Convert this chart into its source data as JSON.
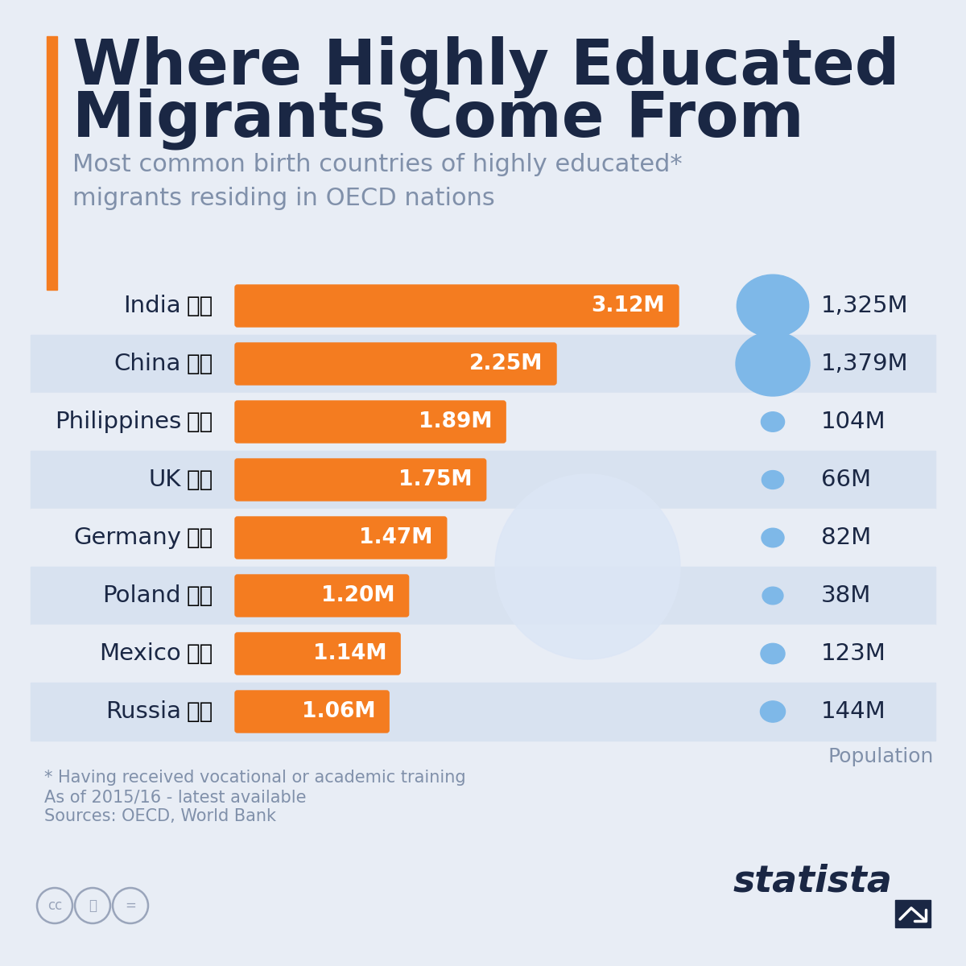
{
  "title_line1": "Where Highly Educated",
  "title_line2": "Migrants Come From",
  "subtitle": "Most common birth countries of highly educated*\nmigrants residing in OECD nations",
  "countries": [
    "India",
    "China",
    "Philippines",
    "UK",
    "Germany",
    "Poland",
    "Mexico",
    "Russia"
  ],
  "migrants": [
    3.12,
    2.25,
    1.89,
    1.75,
    1.47,
    1.2,
    1.14,
    1.06
  ],
  "migrants_labels": [
    "3.12M",
    "2.25M",
    "1.89M",
    "1.75M",
    "1.47M",
    "1.20M",
    "1.14M",
    "1.06M"
  ],
  "population": [
    1325,
    1379,
    104,
    66,
    82,
    38,
    123,
    144
  ],
  "population_labels": [
    "1,325M",
    "1,379M",
    "104M",
    "66M",
    "82M",
    "38M",
    "123M",
    "144M"
  ],
  "bar_color": "#F47C20",
  "bg_color": "#E8EDF5",
  "row_color_even": "#E8EDF5",
  "row_color_odd": "#D8E2F0",
  "title_color": "#1a2744",
  "subtitle_color": "#8090AA",
  "bar_max": 3.12,
  "pop_bubble_color": "#7EB8E8",
  "footnote_line1": "* Having received vocational or academic training",
  "footnote_line2": "As of 2015/16 - latest available",
  "footnote_line3": "Sources: OECD, World Bank",
  "pop_label": "Population",
  "flag_emojis": [
    "🇮🇳",
    "🇨🇳",
    "🇵🇭",
    "🇬🇧",
    "🇩🇪",
    "🇵🇱",
    "🇲🇽",
    "🇷🇺"
  ],
  "accent_color": "#F47C20",
  "statista_color": "#1a2744"
}
